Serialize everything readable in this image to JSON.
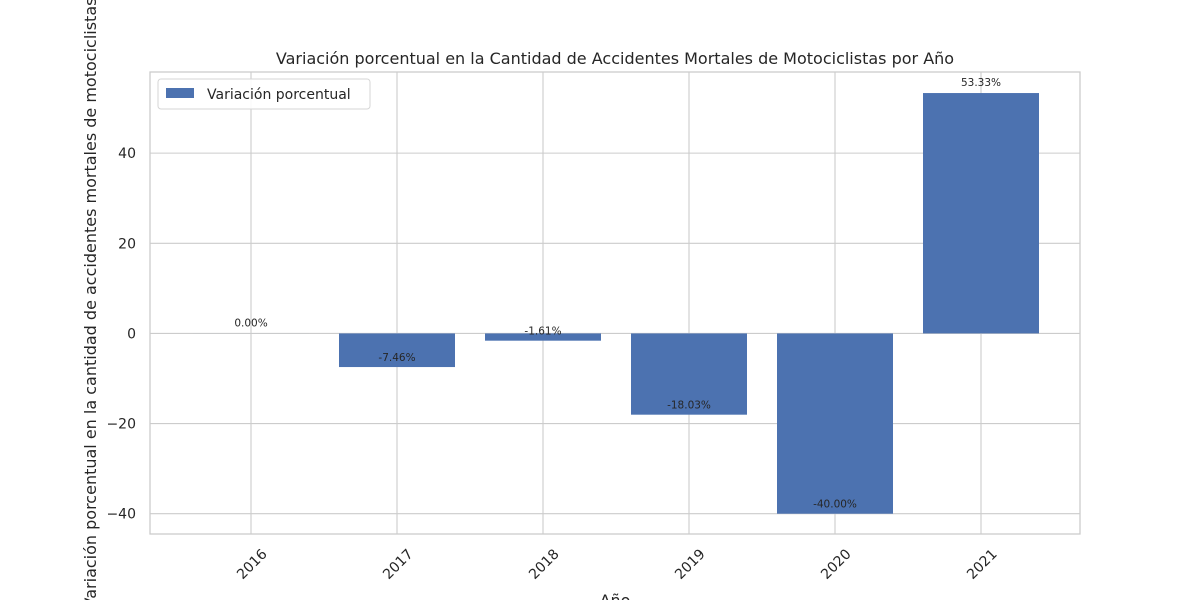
{
  "chart_data": {
    "type": "bar",
    "title": "Variación porcentual en la Cantidad de Accidentes Mortales de Motociclistas por Año",
    "xlabel": "Año",
    "ylabel": "Variación porcentual en la cantidad de accidentes mortales de motociclistas",
    "categories": [
      "2016",
      "2017",
      "2018",
      "2019",
      "2020",
      "2021"
    ],
    "series": [
      {
        "name": "Variación porcentual",
        "values": [
          0.0,
          -7.46,
          -1.61,
          -18.03,
          -40.0,
          53.33
        ],
        "labels": [
          "0.00%",
          "-7.46%",
          "-1.61%",
          "-18.03%",
          "-40.00%",
          "53.33%"
        ],
        "color": "#4c72b0"
      }
    ],
    "ylim": [
      -44.5,
      58.0
    ],
    "yticks": [
      -40,
      -20,
      0,
      20,
      40
    ],
    "ytick_labels": [
      "−40",
      "−20",
      "0",
      "20",
      "40"
    ],
    "grid": true,
    "legend": "upper-left",
    "xtick_rotation": 45
  }
}
